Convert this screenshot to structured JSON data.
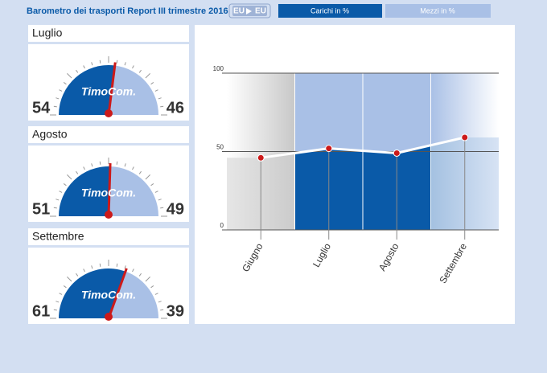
{
  "header": {
    "title": "Barometro dei trasporti Report III trimestre 2016",
    "route": {
      "from": "EU",
      "to": "EU"
    },
    "legend": [
      "Carichi in %",
      "Mezzi in %"
    ]
  },
  "brand": "TimoCom.",
  "gauges": [
    {
      "month": "Luglio",
      "carichi": 54,
      "mezzi": 46
    },
    {
      "month": "Agosto",
      "carichi": 51,
      "mezzi": 49
    },
    {
      "month": "Settembre",
      "carichi": 61,
      "mezzi": 39
    }
  ],
  "chart_data": {
    "type": "line",
    "categories": [
      "Giugno",
      "Luglio",
      "Agosto",
      "Settembre"
    ],
    "values": [
      46,
      52,
      49,
      59
    ],
    "color": "#ffffff",
    "ylim": [
      0,
      100
    ],
    "yticks": [
      0,
      50,
      100
    ],
    "grid": true
  }
}
